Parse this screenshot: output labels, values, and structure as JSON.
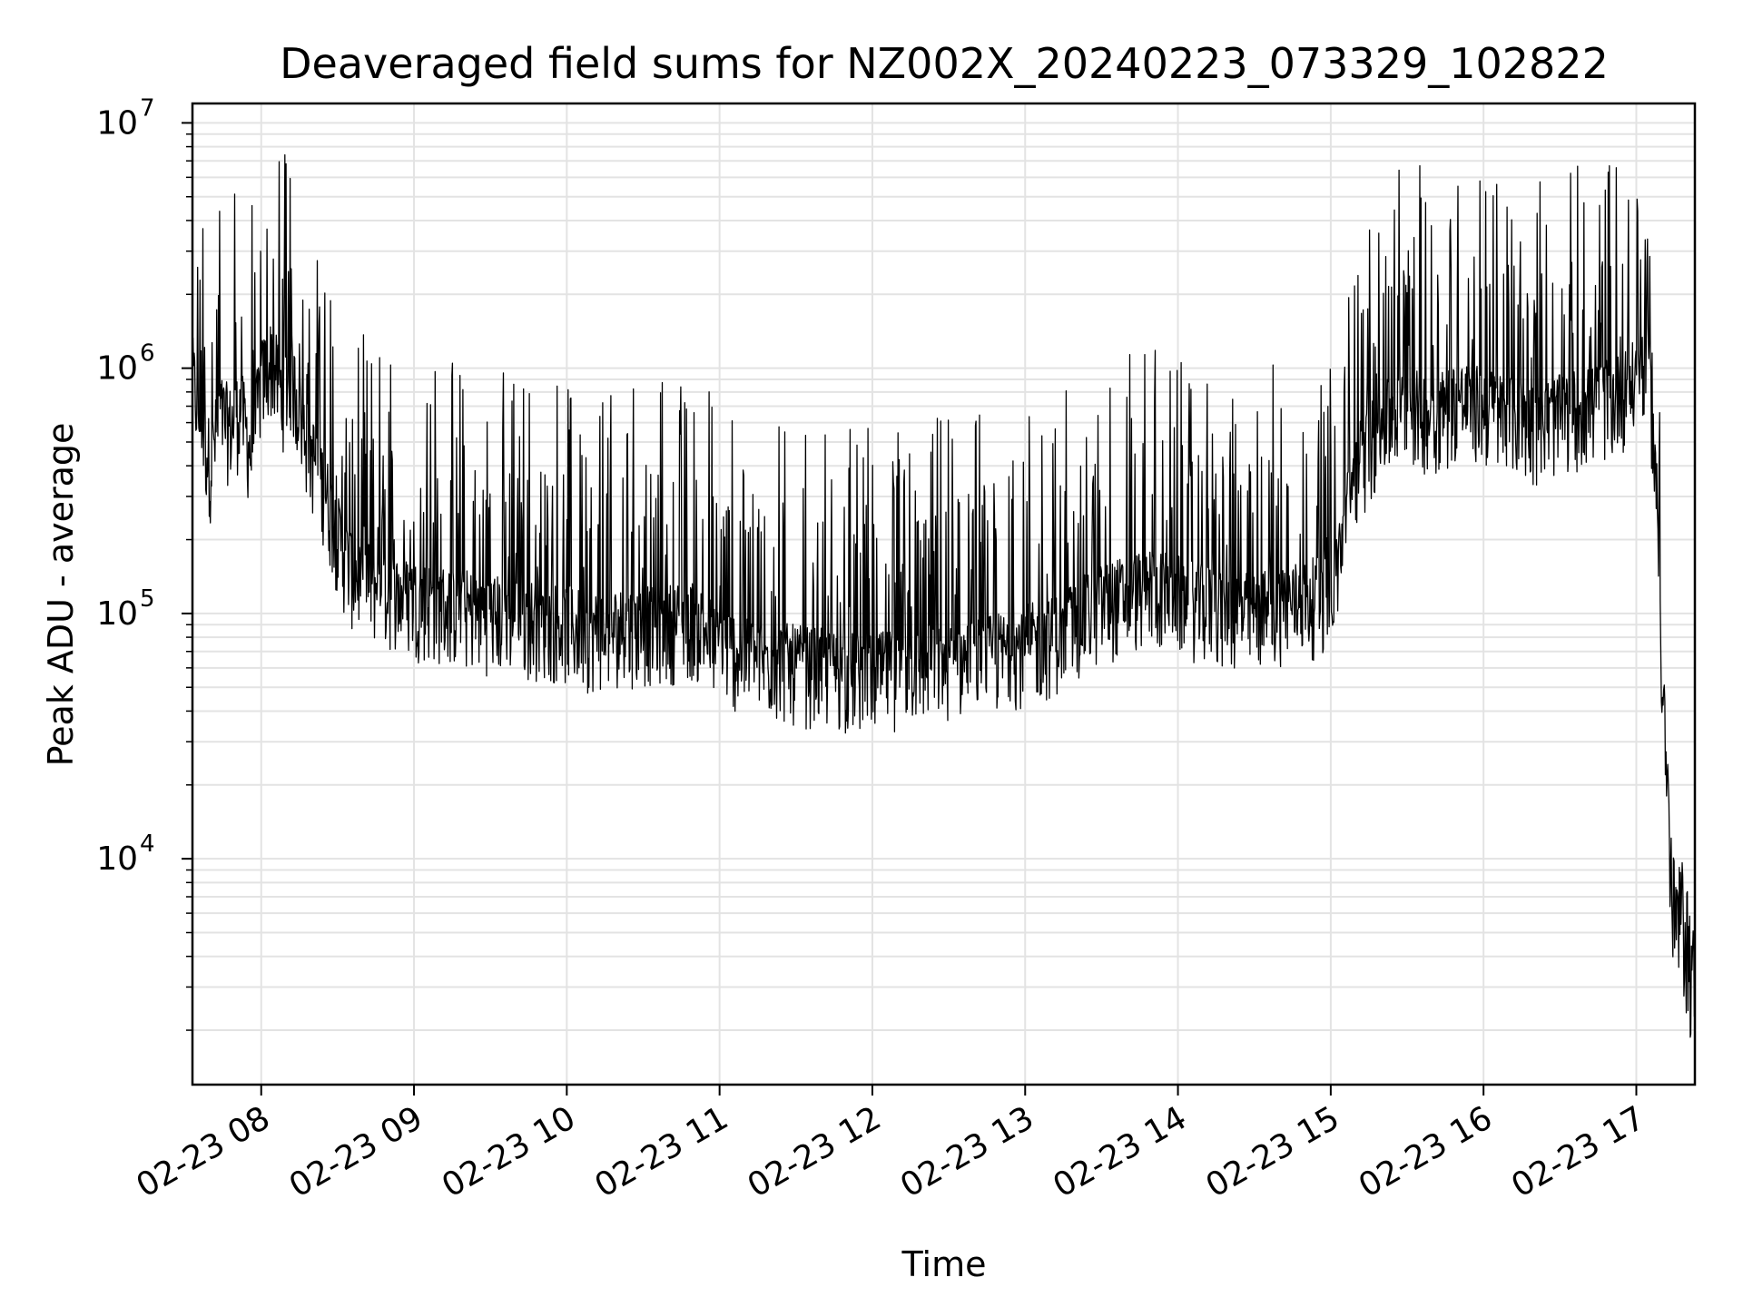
{
  "chart_data": {
    "type": "line",
    "title": "Deaveraged field sums for NZ002X_20240223_073329_102822",
    "xlabel": "Time",
    "ylabel": "Peak ADU - average",
    "yscale": "log",
    "ylim": [
      1200,
      12000000
    ],
    "xlim": [
      "2024-02-23 07:33",
      "2024-02-23 17:23"
    ],
    "grid": true,
    "line_color": "#000000",
    "grid_color": "#e3e3e3",
    "x_ticks": [
      {
        "t": "2024-02-23 08:00",
        "label": "02-23 08"
      },
      {
        "t": "2024-02-23 09:00",
        "label": "02-23 09"
      },
      {
        "t": "2024-02-23 10:00",
        "label": "02-23 10"
      },
      {
        "t": "2024-02-23 11:00",
        "label": "02-23 11"
      },
      {
        "t": "2024-02-23 12:00",
        "label": "02-23 12"
      },
      {
        "t": "2024-02-23 13:00",
        "label": "02-23 13"
      },
      {
        "t": "2024-02-23 14:00",
        "label": "02-23 14"
      },
      {
        "t": "2024-02-23 15:00",
        "label": "02-23 15"
      },
      {
        "t": "2024-02-23 16:00",
        "label": "02-23 16"
      },
      {
        "t": "2024-02-23 17:00",
        "label": "02-23 17"
      }
    ],
    "y_ticks": [
      {
        "value": 10000,
        "base": "10",
        "exp": "4"
      },
      {
        "value": 100000,
        "base": "10",
        "exp": "5"
      },
      {
        "value": 1000000,
        "base": "10",
        "exp": "6"
      },
      {
        "value": 10000000,
        "base": "10",
        "exp": "7"
      }
    ],
    "series": [
      {
        "points": [
          [
            "2024-02-23 07:33",
            950000
          ],
          [
            "2024-02-23 07:36",
            600000
          ],
          [
            "2024-02-23 07:40",
            420000
          ],
          [
            "2024-02-23 07:44",
            650000
          ],
          [
            "2024-02-23 07:48",
            580000
          ],
          [
            "2024-02-23 07:52",
            700000
          ],
          [
            "2024-02-23 07:56",
            450000
          ],
          [
            "2024-02-23 08:00",
            900000
          ],
          [
            "2024-02-23 08:04",
            1100000
          ],
          [
            "2024-02-23 08:08",
            800000
          ],
          [
            "2024-02-23 08:12",
            950000
          ],
          [
            "2024-02-23 08:16",
            600000
          ],
          [
            "2024-02-23 08:20",
            450000
          ],
          [
            "2024-02-23 08:24",
            350000
          ],
          [
            "2024-02-23 08:28",
            250000
          ],
          [
            "2024-02-23 08:32",
            180000
          ],
          [
            "2024-02-23 08:36",
            150000
          ],
          [
            "2024-02-23 08:40",
            140000
          ],
          [
            "2024-02-23 08:45",
            130000
          ],
          [
            "2024-02-23 08:50",
            125000
          ],
          [
            "2024-02-23 08:55",
            120000
          ],
          [
            "2024-02-23 09:00",
            115000
          ],
          [
            "2024-02-23 09:10",
            110000
          ],
          [
            "2024-02-23 09:20",
            105000
          ],
          [
            "2024-02-23 09:30",
            100000
          ],
          [
            "2024-02-23 09:40",
            98000
          ],
          [
            "2024-02-23 09:50",
            95000
          ],
          [
            "2024-02-23 10:00",
            90000
          ],
          [
            "2024-02-23 10:10",
            85000
          ],
          [
            "2024-02-23 10:20",
            88000
          ],
          [
            "2024-02-23 10:30",
            90000
          ],
          [
            "2024-02-23 10:40",
            92000
          ],
          [
            "2024-02-23 10:50",
            95000
          ],
          [
            "2024-02-23 11:00",
            75000
          ],
          [
            "2024-02-23 11:10",
            68000
          ],
          [
            "2024-02-23 11:20",
            65000
          ],
          [
            "2024-02-23 11:30",
            62000
          ],
          [
            "2024-02-23 11:40",
            60000
          ],
          [
            "2024-02-23 11:50",
            58000
          ],
          [
            "2024-02-23 12:00",
            57000
          ],
          [
            "2024-02-23 12:10",
            60000
          ],
          [
            "2024-02-23 12:20",
            62000
          ],
          [
            "2024-02-23 12:30",
            65000
          ],
          [
            "2024-02-23 12:40",
            66000
          ],
          [
            "2024-02-23 12:50",
            70000
          ],
          [
            "2024-02-23 13:00",
            75000
          ],
          [
            "2024-02-23 13:10",
            80000
          ],
          [
            "2024-02-23 13:20",
            95000
          ],
          [
            "2024-02-23 13:30",
            110000
          ],
          [
            "2024-02-23 13:40",
            120000
          ],
          [
            "2024-02-23 13:50",
            130000
          ],
          [
            "2024-02-23 14:00",
            120000
          ],
          [
            "2024-02-23 14:10",
            110000
          ],
          [
            "2024-02-23 14:20",
            105000
          ],
          [
            "2024-02-23 14:30",
            100000
          ],
          [
            "2024-02-23 14:40",
            110000
          ],
          [
            "2024-02-23 14:50",
            115000
          ],
          [
            "2024-02-23 15:00",
            120000
          ],
          [
            "2024-02-23 15:10",
            400000
          ],
          [
            "2024-02-23 15:20",
            600000
          ],
          [
            "2024-02-23 15:30",
            700000
          ],
          [
            "2024-02-23 15:40",
            650000
          ],
          [
            "2024-02-23 15:50",
            750000
          ],
          [
            "2024-02-23 16:00",
            700000
          ],
          [
            "2024-02-23 16:10",
            650000
          ],
          [
            "2024-02-23 16:20",
            600000
          ],
          [
            "2024-02-23 16:30",
            650000
          ],
          [
            "2024-02-23 16:40",
            700000
          ],
          [
            "2024-02-23 16:50",
            750000
          ],
          [
            "2024-02-23 17:00",
            900000
          ],
          [
            "2024-02-23 17:04",
            1200000
          ],
          [
            "2024-02-23 17:06",
            700000
          ],
          [
            "2024-02-23 17:08",
            300000
          ],
          [
            "2024-02-23 17:10",
            60000
          ],
          [
            "2024-02-23 17:12",
            15000
          ],
          [
            "2024-02-23 17:14",
            5000
          ],
          [
            "2024-02-23 17:16",
            4000
          ],
          [
            "2024-02-23 17:18",
            4500
          ],
          [
            "2024-02-23 17:20",
            3500
          ],
          [
            "2024-02-23 17:23",
            2200
          ]
        ]
      }
    ]
  }
}
